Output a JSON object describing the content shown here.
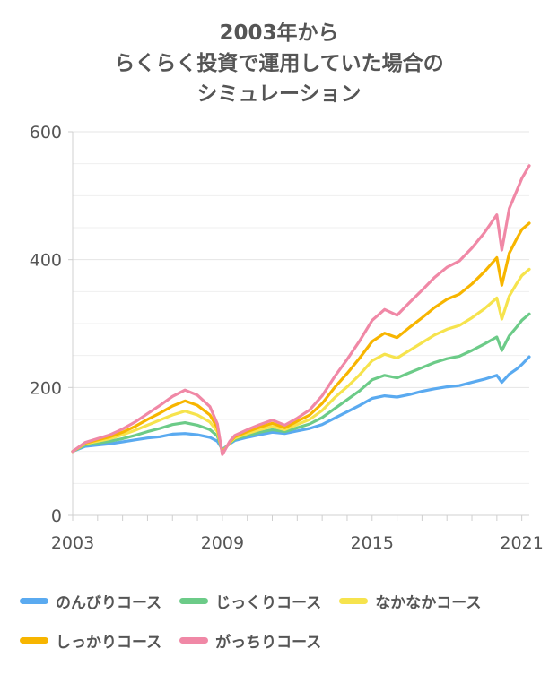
{
  "chart_data": {
    "type": "line",
    "title_lines": [
      "2003年から",
      "らくらく投資で運用していた場合の",
      "シミュレーション"
    ],
    "x_ticks": [
      "2003",
      "2009",
      "2015",
      "2021"
    ],
    "y_ticks": [
      "0",
      "200",
      "400",
      "600"
    ],
    "ylim": [
      0,
      600
    ],
    "xlim": [
      2003.0,
      2021.3
    ],
    "grid": true,
    "legend_position": "bottom",
    "x": [
      2003.0,
      2003.5,
      2004.0,
      2004.5,
      2005.0,
      2005.5,
      2006.0,
      2006.5,
      2007.0,
      2007.5,
      2008.0,
      2008.5,
      2008.8,
      2009.0,
      2009.3,
      2009.5,
      2010.0,
      2010.5,
      2011.0,
      2011.5,
      2012.0,
      2012.5,
      2013.0,
      2013.5,
      2014.0,
      2014.5,
      2015.0,
      2015.5,
      2016.0,
      2016.5,
      2017.0,
      2017.5,
      2018.0,
      2018.5,
      2019.0,
      2019.5,
      2020.0,
      2020.2,
      2020.5,
      2020.8,
      2021.0,
      2021.3
    ],
    "series": [
      {
        "name": "のんびりコース",
        "color": "#5aaaf0",
        "values": [
          100,
          108,
          110,
          112,
          115,
          118,
          121,
          123,
          127,
          128,
          126,
          122,
          116,
          103,
          112,
          117,
          122,
          126,
          130,
          128,
          132,
          136,
          142,
          152,
          162,
          172,
          183,
          187,
          185,
          189,
          194,
          198,
          201,
          203,
          208,
          213,
          219,
          208,
          221,
          229,
          236,
          248
        ]
      },
      {
        "name": "じっくりコース",
        "color": "#6ccb88",
        "values": [
          100,
          110,
          113,
          116,
          120,
          125,
          131,
          136,
          142,
          145,
          141,
          134,
          124,
          101,
          113,
          119,
          125,
          130,
          134,
          131,
          137,
          143,
          153,
          167,
          181,
          195,
          212,
          219,
          215,
          223,
          231,
          239,
          245,
          249,
          258,
          268,
          279,
          258,
          281,
          295,
          305,
          315
        ]
      },
      {
        "name": "なかなかコース",
        "color": "#f6e34d",
        "values": [
          100,
          112,
          116,
          120,
          126,
          133,
          141,
          149,
          157,
          163,
          157,
          146,
          131,
          99,
          114,
          121,
          128,
          134,
          139,
          134,
          142,
          150,
          164,
          184,
          201,
          220,
          242,
          252,
          246,
          258,
          270,
          282,
          291,
          297,
          309,
          323,
          340,
          307,
          343,
          363,
          375,
          385
        ]
      },
      {
        "name": "しっかりコース",
        "color": "#f7b500",
        "values": [
          100,
          113,
          118,
          123,
          130,
          139,
          150,
          160,
          171,
          179,
          172,
          157,
          137,
          97,
          115,
          123,
          131,
          138,
          144,
          137,
          147,
          157,
          175,
          200,
          222,
          246,
          272,
          285,
          278,
          294,
          309,
          325,
          338,
          346,
          362,
          381,
          403,
          360,
          410,
          433,
          447,
          457
        ]
      },
      {
        "name": "がっちりコース",
        "color": "#f088a6",
        "values": [
          100,
          114,
          120,
          126,
          135,
          146,
          159,
          172,
          186,
          196,
          188,
          170,
          143,
          95,
          116,
          125,
          134,
          142,
          149,
          141,
          152,
          165,
          187,
          217,
          244,
          273,
          305,
          322,
          313,
          333,
          352,
          372,
          388,
          398,
          418,
          442,
          470,
          415,
          480,
          508,
          527,
          547
        ]
      }
    ]
  }
}
